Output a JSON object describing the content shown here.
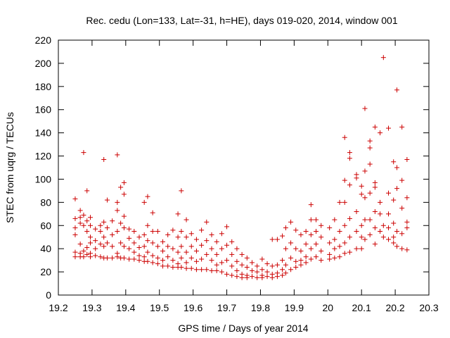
{
  "chart_data": {
    "type": "scatter",
    "title": "Rec. cedu (Lon=133, Lat=-31, h=HE), days 019-020, 2014, window 001",
    "xlabel": "GPS time / Days of year 2014",
    "ylabel": "STEC from uqrg / TECUs",
    "xlim": [
      19.2,
      20.3
    ],
    "ylim": [
      0,
      220
    ],
    "xticks": [
      19.2,
      19.3,
      19.4,
      19.5,
      19.6,
      19.7,
      19.8,
      19.9,
      20.0,
      20.1,
      20.2,
      20.3
    ],
    "yticks": [
      0,
      20,
      40,
      60,
      80,
      100,
      120,
      140,
      160,
      180,
      200,
      220
    ],
    "xtick_labels": [
      "19.2",
      "19.3",
      "19.4",
      "19.5",
      "19.6",
      "19.7",
      "19.8",
      "19.9",
      "20",
      "20.1",
      "20.2",
      "20.3"
    ],
    "ytick_labels": [
      "0",
      "20",
      "40",
      "60",
      "80",
      "100",
      "120",
      "140",
      "160",
      "180",
      "200",
      "220"
    ],
    "marker": "+",
    "marker_color": "#cc0000",
    "grid": false,
    "series": [
      {
        "name": "STEC",
        "points": [
          [
            19.25,
            83
          ],
          [
            19.25,
            66
          ],
          [
            19.25,
            58
          ],
          [
            19.25,
            52
          ],
          [
            19.25,
            37
          ],
          [
            19.25,
            33
          ],
          [
            19.265,
            73
          ],
          [
            19.265,
            67
          ],
          [
            19.265,
            62
          ],
          [
            19.265,
            44
          ],
          [
            19.265,
            36
          ],
          [
            19.265,
            33
          ],
          [
            19.275,
            123
          ],
          [
            19.275,
            69
          ],
          [
            19.275,
            60
          ],
          [
            19.275,
            38
          ],
          [
            19.275,
            33
          ],
          [
            19.285,
            90
          ],
          [
            19.285,
            64
          ],
          [
            19.285,
            55
          ],
          [
            19.285,
            41
          ],
          [
            19.285,
            35
          ],
          [
            19.295,
            67
          ],
          [
            19.295,
            60
          ],
          [
            19.295,
            50
          ],
          [
            19.295,
            45
          ],
          [
            19.295,
            36
          ],
          [
            19.295,
            33
          ],
          [
            19.31,
            57
          ],
          [
            19.31,
            47
          ],
          [
            19.31,
            40
          ],
          [
            19.31,
            34
          ],
          [
            19.325,
            60
          ],
          [
            19.325,
            55
          ],
          [
            19.325,
            44
          ],
          [
            19.325,
            33
          ],
          [
            19.335,
            117
          ],
          [
            19.335,
            63
          ],
          [
            19.335,
            50
          ],
          [
            19.335,
            42
          ],
          [
            19.335,
            32
          ],
          [
            19.345,
            82
          ],
          [
            19.345,
            58
          ],
          [
            19.345,
            45
          ],
          [
            19.345,
            32
          ],
          [
            19.36,
            64
          ],
          [
            19.36,
            52
          ],
          [
            19.36,
            42
          ],
          [
            19.36,
            32
          ],
          [
            19.375,
            121
          ],
          [
            19.375,
            80
          ],
          [
            19.375,
            73
          ],
          [
            19.375,
            55
          ],
          [
            19.375,
            36
          ],
          [
            19.375,
            33
          ],
          [
            19.385,
            93
          ],
          [
            19.385,
            62
          ],
          [
            19.385,
            45
          ],
          [
            19.385,
            32
          ],
          [
            19.395,
            97
          ],
          [
            19.395,
            87
          ],
          [
            19.395,
            68
          ],
          [
            19.395,
            58
          ],
          [
            19.395,
            42
          ],
          [
            19.395,
            32
          ],
          [
            19.41,
            57
          ],
          [
            19.41,
            49
          ],
          [
            19.41,
            40
          ],
          [
            19.41,
            31
          ],
          [
            19.425,
            55
          ],
          [
            19.425,
            45
          ],
          [
            19.425,
            37
          ],
          [
            19.425,
            31
          ],
          [
            19.44,
            50
          ],
          [
            19.44,
            41
          ],
          [
            19.44,
            34
          ],
          [
            19.44,
            30
          ],
          [
            19.455,
            80
          ],
          [
            19.455,
            52
          ],
          [
            19.455,
            42
          ],
          [
            19.455,
            33
          ],
          [
            19.455,
            29
          ],
          [
            19.465,
            85
          ],
          [
            19.465,
            60
          ],
          [
            19.465,
            47
          ],
          [
            19.465,
            37
          ],
          [
            19.465,
            29
          ],
          [
            19.48,
            71
          ],
          [
            19.48,
            55
          ],
          [
            19.48,
            45
          ],
          [
            19.48,
            34
          ],
          [
            19.48,
            28
          ],
          [
            19.495,
            55
          ],
          [
            19.495,
            42
          ],
          [
            19.495,
            32
          ],
          [
            19.495,
            27
          ],
          [
            19.51,
            46
          ],
          [
            19.51,
            38
          ],
          [
            19.51,
            30
          ],
          [
            19.51,
            25
          ],
          [
            19.525,
            52
          ],
          [
            19.525,
            42
          ],
          [
            19.525,
            33
          ],
          [
            19.525,
            25
          ],
          [
            19.54,
            56
          ],
          [
            19.54,
            40
          ],
          [
            19.54,
            30
          ],
          [
            19.54,
            24
          ],
          [
            19.555,
            70
          ],
          [
            19.555,
            50
          ],
          [
            19.555,
            37
          ],
          [
            19.555,
            27
          ],
          [
            19.555,
            24
          ],
          [
            19.565,
            90
          ],
          [
            19.565,
            55
          ],
          [
            19.565,
            42
          ],
          [
            19.565,
            32
          ],
          [
            19.565,
            24
          ],
          [
            19.58,
            65
          ],
          [
            19.58,
            50
          ],
          [
            19.58,
            37
          ],
          [
            19.58,
            28
          ],
          [
            19.58,
            23
          ],
          [
            19.595,
            53
          ],
          [
            19.595,
            42
          ],
          [
            19.595,
            32
          ],
          [
            19.595,
            23
          ],
          [
            19.61,
            48
          ],
          [
            19.61,
            38
          ],
          [
            19.61,
            29
          ],
          [
            19.61,
            22
          ],
          [
            19.625,
            56
          ],
          [
            19.625,
            43
          ],
          [
            19.625,
            31
          ],
          [
            19.625,
            22
          ],
          [
            19.64,
            63
          ],
          [
            19.64,
            47
          ],
          [
            19.64,
            35
          ],
          [
            19.64,
            22
          ],
          [
            19.655,
            52
          ],
          [
            19.655,
            40
          ],
          [
            19.655,
            30
          ],
          [
            19.655,
            21
          ],
          [
            19.67,
            46
          ],
          [
            19.67,
            35
          ],
          [
            19.67,
            26
          ],
          [
            19.67,
            21
          ],
          [
            19.685,
            53
          ],
          [
            19.685,
            40
          ],
          [
            19.685,
            28
          ],
          [
            19.685,
            20
          ],
          [
            19.7,
            59
          ],
          [
            19.7,
            43
          ],
          [
            19.7,
            30
          ],
          [
            19.7,
            18
          ],
          [
            19.715,
            46
          ],
          [
            19.715,
            35
          ],
          [
            19.715,
            25
          ],
          [
            19.715,
            17
          ],
          [
            19.73,
            40
          ],
          [
            19.73,
            29
          ],
          [
            19.73,
            21
          ],
          [
            19.73,
            16
          ],
          [
            19.745,
            35
          ],
          [
            19.745,
            26
          ],
          [
            19.745,
            18
          ],
          [
            19.745,
            15
          ],
          [
            19.76,
            32
          ],
          [
            19.76,
            24
          ],
          [
            19.76,
            17
          ],
          [
            19.76,
            15
          ],
          [
            19.775,
            28
          ],
          [
            19.775,
            21
          ],
          [
            19.775,
            16
          ],
          [
            19.79,
            25
          ],
          [
            19.79,
            20
          ],
          [
            19.79,
            15
          ],
          [
            19.805,
            31
          ],
          [
            19.805,
            22
          ],
          [
            19.805,
            17
          ],
          [
            19.805,
            15
          ],
          [
            19.82,
            27
          ],
          [
            19.82,
            20
          ],
          [
            19.82,
            16
          ],
          [
            19.835,
            48
          ],
          [
            19.835,
            25
          ],
          [
            19.835,
            18
          ],
          [
            19.835,
            15
          ],
          [
            19.85,
            48
          ],
          [
            19.85,
            26
          ],
          [
            19.85,
            19
          ],
          [
            19.85,
            16
          ],
          [
            19.865,
            51
          ],
          [
            19.865,
            30
          ],
          [
            19.865,
            22
          ],
          [
            19.865,
            17
          ],
          [
            19.875,
            58
          ],
          [
            19.875,
            40
          ],
          [
            19.875,
            26
          ],
          [
            19.875,
            19
          ],
          [
            19.89,
            63
          ],
          [
            19.89,
            45
          ],
          [
            19.89,
            32
          ],
          [
            19.89,
            22
          ],
          [
            19.905,
            56
          ],
          [
            19.905,
            40
          ],
          [
            19.905,
            29
          ],
          [
            19.905,
            24
          ],
          [
            19.92,
            52
          ],
          [
            19.92,
            38
          ],
          [
            19.92,
            30
          ],
          [
            19.92,
            26
          ],
          [
            19.935,
            55
          ],
          [
            19.935,
            44
          ],
          [
            19.935,
            33
          ],
          [
            19.935,
            28
          ],
          [
            19.95,
            78
          ],
          [
            19.95,
            65
          ],
          [
            19.95,
            52
          ],
          [
            19.95,
            40
          ],
          [
            19.95,
            31
          ],
          [
            19.965,
            65
          ],
          [
            19.965,
            55
          ],
          [
            19.965,
            44
          ],
          [
            19.965,
            33
          ],
          [
            19.98,
            60
          ],
          [
            19.98,
            50
          ],
          [
            19.98,
            38
          ],
          [
            19.98,
            30
          ],
          [
            20.005,
            58
          ],
          [
            20.005,
            45
          ],
          [
            20.005,
            35
          ],
          [
            20.005,
            31
          ],
          [
            20.02,
            65
          ],
          [
            20.02,
            48
          ],
          [
            20.02,
            40
          ],
          [
            20.02,
            32
          ],
          [
            20.035,
            80
          ],
          [
            20.035,
            55
          ],
          [
            20.035,
            42
          ],
          [
            20.035,
            33
          ],
          [
            20.05,
            136
          ],
          [
            20.05,
            99
          ],
          [
            20.05,
            80
          ],
          [
            20.05,
            60
          ],
          [
            20.05,
            45
          ],
          [
            20.05,
            36
          ],
          [
            20.065,
            123
          ],
          [
            20.065,
            118
          ],
          [
            20.065,
            95
          ],
          [
            20.065,
            66
          ],
          [
            20.065,
            50
          ],
          [
            20.065,
            37
          ],
          [
            20.085,
            104
          ],
          [
            20.085,
            101
          ],
          [
            20.085,
            72
          ],
          [
            20.085,
            55
          ],
          [
            20.085,
            40
          ],
          [
            20.1,
            94
          ],
          [
            20.1,
            87
          ],
          [
            20.1,
            60
          ],
          [
            20.1,
            50
          ],
          [
            20.1,
            40
          ],
          [
            20.11,
            161
          ],
          [
            20.11,
            107
          ],
          [
            20.11,
            84
          ],
          [
            20.11,
            65
          ],
          [
            20.11,
            48
          ],
          [
            20.125,
            133
          ],
          [
            20.125,
            127
          ],
          [
            20.125,
            113
          ],
          [
            20.125,
            88
          ],
          [
            20.125,
            65
          ],
          [
            20.125,
            52
          ],
          [
            20.14,
            145
          ],
          [
            20.14,
            97
          ],
          [
            20.14,
            93
          ],
          [
            20.14,
            72
          ],
          [
            20.14,
            58
          ],
          [
            20.14,
            44
          ],
          [
            20.155,
            140
          ],
          [
            20.155,
            80
          ],
          [
            20.155,
            70
          ],
          [
            20.155,
            55
          ],
          [
            20.165,
            205
          ],
          [
            20.165,
            60
          ],
          [
            20.165,
            50
          ],
          [
            20.18,
            144
          ],
          [
            20.18,
            88
          ],
          [
            20.18,
            70
          ],
          [
            20.18,
            58
          ],
          [
            20.18,
            48
          ],
          [
            20.195,
            115
          ],
          [
            20.195,
            82
          ],
          [
            20.195,
            62
          ],
          [
            20.195,
            50
          ],
          [
            20.195,
            45
          ],
          [
            20.205,
            177
          ],
          [
            20.205,
            110
          ],
          [
            20.205,
            92
          ],
          [
            20.205,
            55
          ],
          [
            20.205,
            42
          ],
          [
            20.22,
            145
          ],
          [
            20.22,
            99
          ],
          [
            20.22,
            75
          ],
          [
            20.22,
            53
          ],
          [
            20.22,
            40
          ],
          [
            20.235,
            117
          ],
          [
            20.235,
            84
          ],
          [
            20.235,
            63
          ],
          [
            20.235,
            58
          ],
          [
            20.235,
            39
          ]
        ]
      }
    ]
  }
}
